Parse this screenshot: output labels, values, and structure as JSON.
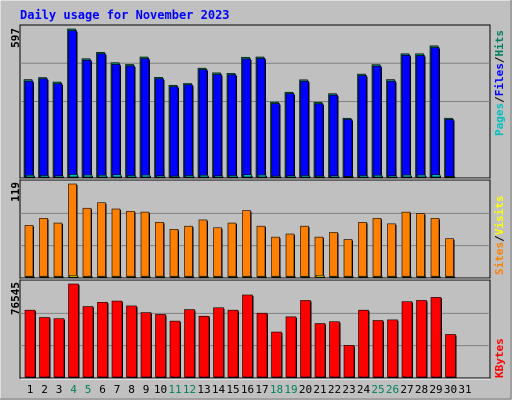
{
  "title": "Daily usage for November 2023",
  "colors": {
    "background": "#c0c0c0",
    "title": "#0000ff",
    "hits": "#00805c",
    "files": "#0000ff",
    "pages": "#00c0c0",
    "visits": "#ff8000",
    "sites": "#ffff00",
    "kbytes": "#ff0000",
    "grid": "#808080"
  },
  "labels": {
    "pages": "Pages",
    "files": "Files",
    "hits": "Hits",
    "sites": "Sites",
    "visits": "Visits",
    "kbytes": "KBytes",
    "sep": "/"
  },
  "chart_data": [
    {
      "type": "bar",
      "panel": "hits",
      "ymax_label": "597",
      "ylim": [
        0,
        597
      ],
      "x": [
        1,
        2,
        3,
        4,
        5,
        6,
        7,
        8,
        9,
        10,
        11,
        12,
        13,
        14,
        15,
        16,
        17,
        18,
        19,
        20,
        21,
        22,
        23,
        24,
        25,
        26,
        27,
        28,
        29,
        30,
        31
      ],
      "weekend_days": [
        4,
        5,
        11,
        12,
        18,
        19,
        25,
        26
      ],
      "series": [
        {
          "name": "Hits",
          "values": [
            393,
            401,
            383,
            597,
            477,
            503,
            461,
            454,
            484,
            402,
            370,
            377,
            439,
            420,
            418,
            483,
            484,
            302,
            342,
            392,
            301,
            336,
            237,
            415,
            453,
            393,
            497,
            497,
            529,
            237,
            0
          ]
        },
        {
          "name": "Files",
          "values": [
            386,
            396,
            376,
            590,
            471,
            497,
            454,
            448,
            477,
            396,
            364,
            372,
            433,
            413,
            412,
            476,
            478,
            296,
            336,
            386,
            295,
            330,
            232,
            409,
            447,
            386,
            491,
            490,
            522,
            232,
            0
          ]
        },
        {
          "name": "Pages",
          "values": [
            7,
            6,
            5,
            10,
            8,
            7,
            9,
            6,
            8,
            5,
            4,
            6,
            7,
            5,
            6,
            9,
            8,
            4,
            5,
            6,
            4,
            5,
            3,
            6,
            7,
            5,
            8,
            8,
            9,
            3,
            0
          ]
        }
      ]
    },
    {
      "type": "bar",
      "panel": "visits",
      "ymax_label": "119",
      "ylim": [
        0,
        119
      ],
      "x": [
        1,
        2,
        3,
        4,
        5,
        6,
        7,
        8,
        9,
        10,
        11,
        12,
        13,
        14,
        15,
        16,
        17,
        18,
        19,
        20,
        21,
        22,
        23,
        24,
        25,
        26,
        27,
        28,
        29,
        30,
        31
      ],
      "series": [
        {
          "name": "Visits",
          "values": [
            66,
            75,
            69,
            119,
            88,
            95,
            87,
            84,
            83,
            70,
            61,
            65,
            73,
            63,
            69,
            85,
            65,
            51,
            55,
            65,
            51,
            57,
            48,
            70,
            75,
            68,
            83,
            81,
            75,
            49,
            0
          ]
        },
        {
          "name": "Sites",
          "values": [
            1,
            1,
            1,
            2,
            1,
            1,
            1,
            1,
            1,
            1,
            1,
            1,
            1,
            1,
            1,
            1,
            1,
            1,
            1,
            1,
            2,
            1,
            1,
            1,
            1,
            1,
            1,
            1,
            1,
            1,
            0
          ]
        }
      ]
    },
    {
      "type": "bar",
      "panel": "kbytes",
      "ymax_label": "76545",
      "ylim": [
        0,
        76545
      ],
      "x": [
        1,
        2,
        3,
        4,
        5,
        6,
        7,
        8,
        9,
        10,
        11,
        12,
        13,
        14,
        15,
        16,
        17,
        18,
        19,
        20,
        21,
        22,
        23,
        24,
        25,
        26,
        27,
        28,
        29,
        30,
        31
      ],
      "series": [
        {
          "name": "KBytes",
          "values": [
            55000,
            49000,
            48000,
            76545,
            58000,
            61500,
            62500,
            58500,
            53000,
            51500,
            46000,
            55500,
            50000,
            57000,
            55000,
            67500,
            52500,
            37000,
            49500,
            63000,
            44000,
            45500,
            26000,
            55000,
            46500,
            47000,
            62000,
            63000,
            65500,
            35000,
            0
          ]
        }
      ]
    }
  ]
}
